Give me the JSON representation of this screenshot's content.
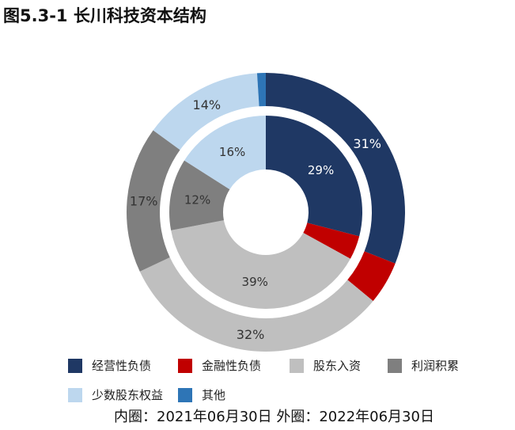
{
  "chart_data": {
    "type": "pie",
    "title": "图5.3-1 长川科技资本结构",
    "categories": [
      "经营性负债",
      "金融性负债",
      "股东入资",
      "利润积累",
      "少数股东权益",
      "其他"
    ],
    "colors": [
      "#1F3864",
      "#C00000",
      "#BFBFBF",
      "#7F7F7F",
      "#BDD7EE",
      "#2E75B6"
    ],
    "series": [
      {
        "name": "内圈：2021年06月30日",
        "values": [
          29,
          4,
          39,
          12,
          16,
          0
        ],
        "labels": [
          "29%",
          "",
          "39%",
          "12%",
          "16%",
          ""
        ]
      },
      {
        "name": "外圈：2022年06月30日",
        "values": [
          31,
          5,
          32,
          17,
          14,
          1
        ],
        "labels": [
          "31%",
          "",
          "32%",
          "17%",
          "14%",
          ""
        ]
      }
    ],
    "note": "内圈：2021年06月30日 外圈：2022年06月30日",
    "legend_position": "bottom"
  }
}
